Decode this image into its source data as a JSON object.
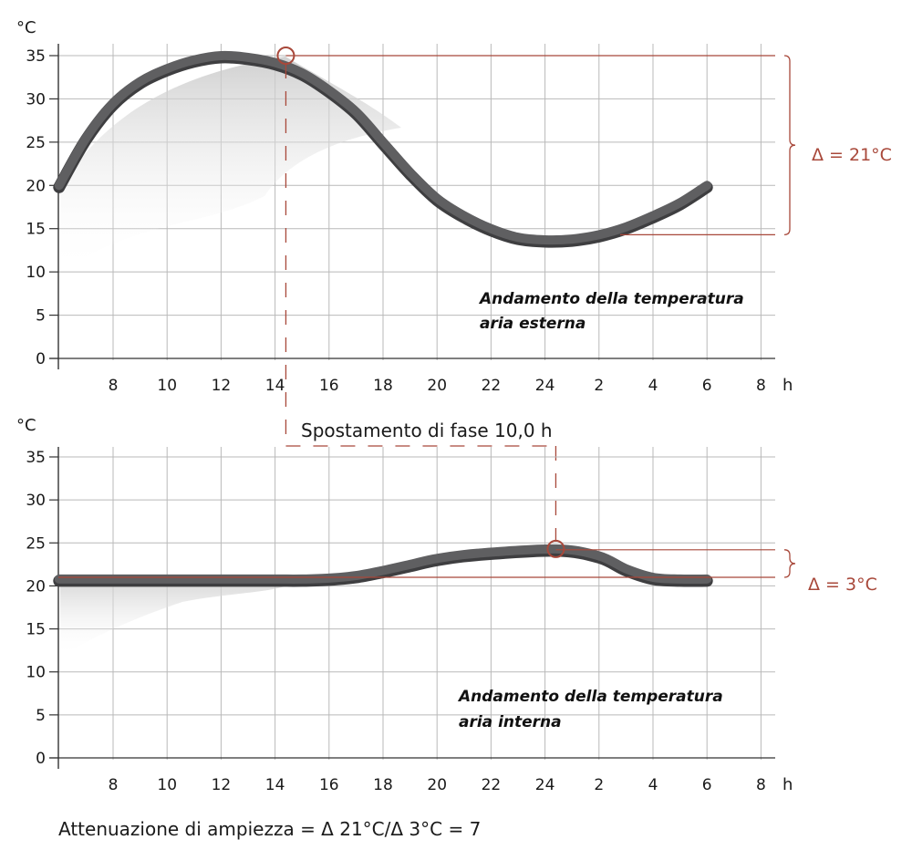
{
  "chart_data": [
    {
      "type": "line",
      "title": "Andamento della temperatura aria esterna",
      "caption_lines": [
        "Andamento della temperatura",
        "aria esterna"
      ],
      "ylabel": "°C",
      "xlabel": "h",
      "ylim": [
        0,
        35
      ],
      "y_ticks": [
        0,
        5,
        10,
        15,
        20,
        25,
        30,
        35
      ],
      "y_tick_labels": [
        "0",
        "5",
        "10",
        "15",
        "20",
        "25",
        "30",
        "35"
      ],
      "x_tick_labels": [
        "8",
        "10",
        "12",
        "14",
        "16",
        "18",
        "20",
        "22",
        "24",
        "2",
        "4",
        "6",
        "8"
      ],
      "x_hours": [
        6,
        7,
        8,
        9,
        10,
        11,
        12,
        13,
        14,
        15,
        16,
        17,
        18,
        19,
        20,
        21,
        22,
        23,
        24,
        25,
        26,
        27,
        28,
        29,
        30,
        31,
        32
      ],
      "series": [
        {
          "name": "aria esterna",
          "values": [
            20,
            25.5,
            29.5,
            32,
            33.5,
            34.5,
            35,
            34.8,
            34.2,
            33,
            31,
            28.5,
            25,
            21.5,
            18.5,
            16.5,
            15,
            14,
            13.7,
            13.8,
            14.3,
            15.2,
            16.5,
            18,
            20
          ]
        }
      ],
      "series_x": [
        6,
        7,
        8,
        9,
        10,
        11,
        12,
        13,
        14,
        15,
        16,
        17,
        18,
        19,
        20,
        21,
        22,
        23,
        24,
        25,
        26,
        27,
        28,
        29,
        30
      ],
      "peak": {
        "x": 14.4,
        "y": 35
      },
      "range_lines": {
        "max": 35,
        "min": 14.3
      },
      "delta_label": "Δ = 21°C"
    },
    {
      "type": "line",
      "title": "Andamento della temperatura aria interna",
      "caption_lines": [
        "Andamento della temperatura",
        "aria interna"
      ],
      "ylabel": "°C",
      "xlabel": "h",
      "ylim": [
        0,
        35
      ],
      "y_ticks": [
        0,
        5,
        10,
        15,
        20,
        25,
        30,
        35
      ],
      "y_tick_labels": [
        "0",
        "5",
        "10",
        "15",
        "20",
        "25",
        "30",
        "35"
      ],
      "x_tick_labels": [
        "8",
        "10",
        "12",
        "14",
        "16",
        "18",
        "20",
        "22",
        "24",
        "2",
        "4",
        "6",
        "8"
      ],
      "series": [
        {
          "name": "aria interna",
          "values": [
            20.8,
            20.8,
            20.8,
            20.8,
            20.8,
            20.8,
            20.9,
            21.2,
            21.8,
            22.5,
            23.2,
            23.8,
            24.3,
            23.5,
            22,
            21,
            20.8,
            20.8
          ]
        }
      ],
      "series_x": [
        6,
        8,
        10,
        12,
        14,
        15,
        16,
        17,
        18,
        19,
        20,
        21.5,
        24.4,
        26,
        27,
        28,
        29,
        30
      ],
      "peak": {
        "x": 24.4,
        "y": 24.3
      },
      "range_lines": {
        "max": 24.2,
        "min": 21
      },
      "delta_label": "Δ = 3°C"
    }
  ],
  "phase_shift_label": "Spostamento di fase 10,0 h",
  "footer_text": "Attenuazione di ampiezza = Δ 21°C/Δ 3°C = 7",
  "colors": {
    "curve": "#5f5f61",
    "curve_dark": "#3e3e40",
    "grid": "#b9b9b9",
    "accent": "#a8483a"
  }
}
